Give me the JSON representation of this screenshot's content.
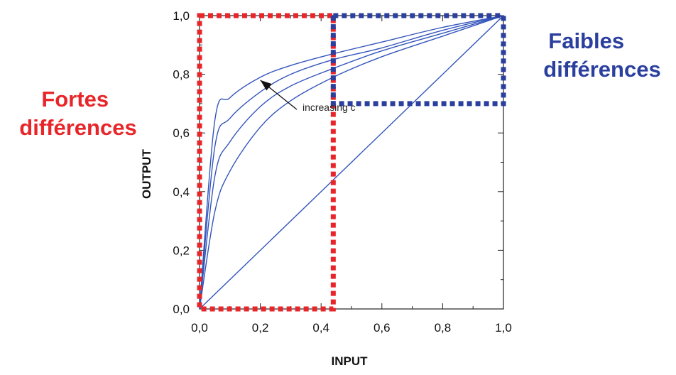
{
  "chart_data": {
    "type": "line",
    "xlabel": "INPUT",
    "ylabel": "OUTPUT",
    "xlim": [
      0,
      1
    ],
    "ylim": [
      0,
      1
    ],
    "x_ticks": [
      "0,0",
      "0,2",
      "0,4",
      "0,6",
      "0,8",
      "1,0"
    ],
    "y_ticks": [
      "0,0",
      "0,2",
      "0,4",
      "0,6",
      "0,8",
      "1,0"
    ],
    "grid": false,
    "series": [
      {
        "x": [
          0,
          0.05,
          0.1,
          0.2,
          0.3,
          0.44,
          0.6,
          0.8,
          1.0
        ],
        "values": [
          0,
          0.64,
          0.72,
          0.79,
          0.83,
          0.87,
          0.91,
          0.96,
          1.0
        ]
      },
      {
        "x": [
          0,
          0.05,
          0.1,
          0.2,
          0.3,
          0.44,
          0.6,
          0.8,
          1.0
        ],
        "values": [
          0,
          0.55,
          0.65,
          0.74,
          0.8,
          0.85,
          0.89,
          0.95,
          1.0
        ]
      },
      {
        "x": [
          0,
          0.05,
          0.1,
          0.2,
          0.3,
          0.44,
          0.6,
          0.8,
          1.0
        ],
        "values": [
          0,
          0.45,
          0.57,
          0.69,
          0.76,
          0.82,
          0.88,
          0.94,
          1.0
        ]
      },
      {
        "x": [
          0,
          0.05,
          0.1,
          0.2,
          0.3,
          0.44,
          0.6,
          0.8,
          1.0
        ],
        "values": [
          0,
          0.33,
          0.47,
          0.62,
          0.71,
          0.79,
          0.86,
          0.93,
          1.0
        ]
      },
      {
        "x": [
          0,
          1.0
        ],
        "values": [
          0,
          1.0
        ]
      }
    ],
    "annotation": {
      "text": "increasing c",
      "arrow_from": [
        0.32,
        0.68
      ],
      "arrow_to": [
        0.2,
        0.78
      ]
    },
    "regions": [
      {
        "label": [
          "Fortes",
          "différences"
        ],
        "color": "#e8262a",
        "x": [
          0,
          0.44
        ],
        "y": [
          0,
          1
        ]
      },
      {
        "label": [
          "Faibles",
          "différences"
        ],
        "color": "#2b3f9e",
        "x": [
          0.44,
          1.0
        ],
        "y": [
          0.7,
          1.0
        ]
      }
    ],
    "colors": {
      "curve": "#3355bb",
      "axis": "#222222"
    }
  }
}
